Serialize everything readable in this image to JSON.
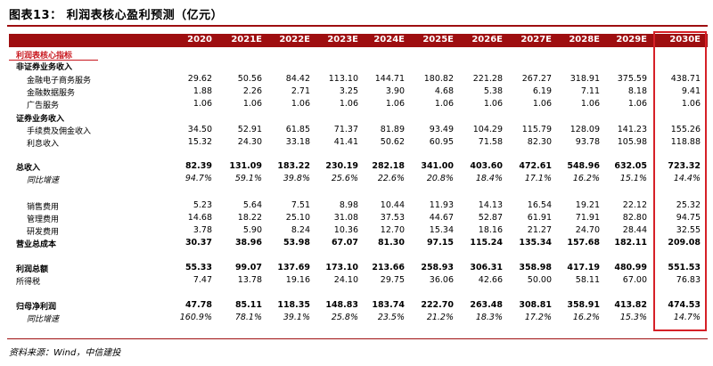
{
  "title": "图表13：    利润表核心盈利预测（亿元）",
  "columns": [
    "2020",
    "2021E",
    "2022E",
    "2023E",
    "2024E",
    "2025E",
    "2026E",
    "2027E",
    "2028E",
    "2029E",
    "2030E"
  ],
  "rows": [
    {
      "label": "利润表核心指标",
      "style": "red",
      "values": []
    },
    {
      "label": "非证券业务收入",
      "style": "section",
      "values": []
    },
    {
      "label": "金融电子商务服务",
      "style": "indent",
      "values": [
        "29.62",
        "50.56",
        "84.42",
        "113.10",
        "144.71",
        "180.82",
        "221.28",
        "267.27",
        "318.91",
        "375.59",
        "438.71"
      ]
    },
    {
      "label": "金融数据服务",
      "style": "indent",
      "values": [
        "1.88",
        "2.26",
        "2.71",
        "3.25",
        "3.90",
        "4.68",
        "5.38",
        "6.19",
        "7.11",
        "8.18",
        "9.41"
      ]
    },
    {
      "label": "广告服务",
      "style": "indent",
      "values": [
        "1.06",
        "1.06",
        "1.06",
        "1.06",
        "1.06",
        "1.06",
        "1.06",
        "1.06",
        "1.06",
        "1.06",
        "1.06"
      ]
    },
    {
      "label": "证券业务收入",
      "style": "section",
      "values": []
    },
    {
      "label": "手续费及佣金收入",
      "style": "indent",
      "values": [
        "34.50",
        "52.91",
        "61.85",
        "71.37",
        "81.89",
        "93.49",
        "104.29",
        "115.79",
        "128.09",
        "141.23",
        "155.26"
      ]
    },
    {
      "label": "利息收入",
      "style": "indent",
      "values": [
        "15.32",
        "24.30",
        "33.18",
        "41.41",
        "50.62",
        "60.95",
        "71.58",
        "82.30",
        "93.78",
        "105.98",
        "118.88"
      ]
    },
    {
      "label": "总收入",
      "style": "bold",
      "values": [
        "82.39",
        "131.09",
        "183.22",
        "230.19",
        "282.18",
        "341.00",
        "403.60",
        "472.61",
        "548.96",
        "632.05",
        "723.32"
      ]
    },
    {
      "label": "同比增速",
      "style": "italic",
      "values": [
        "94.7%",
        "59.1%",
        "39.8%",
        "25.6%",
        "22.6%",
        "20.8%",
        "18.4%",
        "17.1%",
        "16.2%",
        "15.1%",
        "14.4%"
      ]
    },
    {
      "label": "销售费用",
      "style": "indent",
      "values": [
        "5.23",
        "5.64",
        "7.51",
        "8.98",
        "10.44",
        "11.93",
        "14.13",
        "16.54",
        "19.21",
        "22.12",
        "25.32"
      ]
    },
    {
      "label": "管理费用",
      "style": "indent",
      "values": [
        "14.68",
        "18.22",
        "25.10",
        "31.08",
        "37.53",
        "44.67",
        "52.87",
        "61.91",
        "71.91",
        "82.80",
        "94.75"
      ]
    },
    {
      "label": "研发费用",
      "style": "indent",
      "values": [
        "3.78",
        "5.90",
        "8.24",
        "10.36",
        "12.70",
        "15.34",
        "18.16",
        "21.27",
        "24.70",
        "28.44",
        "32.55"
      ]
    },
    {
      "label": "营业总成本",
      "style": "bold",
      "values": [
        "30.37",
        "38.96",
        "53.98",
        "67.07",
        "81.30",
        "97.15",
        "115.24",
        "135.34",
        "157.68",
        "182.11",
        "209.08"
      ]
    },
    {
      "label": "利润总额",
      "style": "bold",
      "values": [
        "55.33",
        "99.07",
        "137.69",
        "173.10",
        "213.66",
        "258.93",
        "306.31",
        "358.98",
        "417.19",
        "480.99",
        "551.53"
      ]
    },
    {
      "label": "所得税",
      "style": "plain",
      "values": [
        "7.47",
        "13.78",
        "19.16",
        "24.10",
        "29.75",
        "36.06",
        "42.66",
        "50.00",
        "58.11",
        "67.00",
        "76.83"
      ]
    },
    {
      "label": "归母净利润",
      "style": "bold",
      "values": [
        "47.78",
        "85.11",
        "118.35",
        "148.83",
        "183.74",
        "222.70",
        "263.48",
        "308.81",
        "358.91",
        "413.82",
        "474.53"
      ]
    },
    {
      "label": "同比增速",
      "style": "italic",
      "values": [
        "160.9%",
        "78.1%",
        "39.1%",
        "25.8%",
        "23.5%",
        "21.2%",
        "18.3%",
        "17.2%",
        "16.2%",
        "15.3%",
        "14.7%"
      ]
    }
  ],
  "source": "资料来源：Wind，中信建投"
}
